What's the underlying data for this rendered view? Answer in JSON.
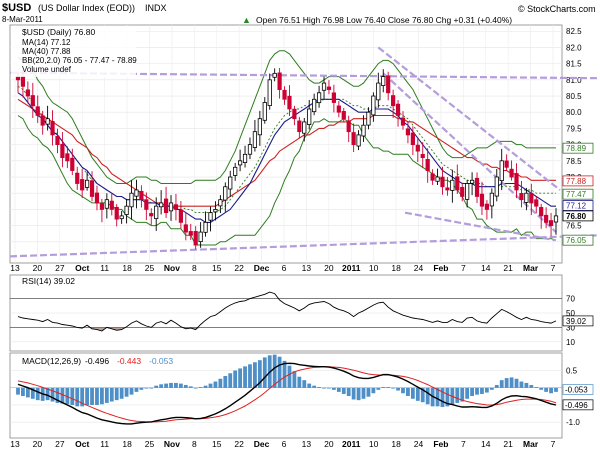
{
  "header": {
    "symbol": "$USD",
    "name": "(US Dollar Index (EOD))",
    "exchange": "INDX",
    "date": "8-Mar-2011",
    "quote": "Open 76.51  High 76.98  Low 76.40  Close 76.80  Chg +0.31 (+0.40%)",
    "quote_arrow": "▲",
    "watermark": "© StockCharts.com"
  },
  "legend": {
    "price": "$USD (Daily) 76.80",
    "ma14": "MA(14) 77.12",
    "ma40": "MA(40) 77.88",
    "bb": "BB(20,2.0) 76.05 - 77.47 - 78.89",
    "volume": "Volume undef",
    "rsi": "RSI(14) 39.02",
    "macd_label": "MACD(12,26,9)",
    "macd_val": "-0.496",
    "macd_signal": "-0.443",
    "macd_hist": "-0.053"
  },
  "colors": {
    "up": "#000000",
    "down": "#cc0033",
    "ma14": "#1a1a8c",
    "ma40": "#cc2222",
    "bb": "#2e7d1f",
    "bb_mid": "#2e7d1f",
    "trend": "#b39ddb",
    "macd": "#000000",
    "signal": "#dd2222",
    "hist": "#4f8fc8"
  },
  "chart_data": [
    {
      "type": "candlestick",
      "title": "$USD (Daily)",
      "ylim": [
        75.5,
        82.6
      ],
      "yticks": [
        "82.5",
        "82.0",
        "81.5",
        "81.0",
        "80.5",
        "80.0",
        "79.5",
        "79.0",
        "78.5",
        "78.0",
        "77.5",
        "77.0",
        "76.5",
        "76.0"
      ],
      "x_tick_labels": [
        "13",
        "20",
        "27",
        "Oct",
        "11",
        "18",
        "25",
        "Nov",
        "8",
        "15",
        "22",
        "Dec",
        "6",
        "13",
        "20",
        "2011",
        "10",
        "18",
        "24",
        "Feb",
        "7",
        "14",
        "21",
        "Mar",
        "7"
      ],
      "tags": [
        {
          "label": "78.89",
          "value": 78.89,
          "color": "#2e7d1f"
        },
        {
          "label": "77.88",
          "value": 77.88,
          "color": "#cc2222"
        },
        {
          "label": "77.47",
          "value": 77.47,
          "color": "#2e7d1f"
        },
        {
          "label": "77.12",
          "value": 77.12,
          "color": "#1a1a8c"
        },
        {
          "label": "76.80",
          "value": 76.8,
          "color": "#000000"
        },
        {
          "label": "76.05",
          "value": 76.05,
          "color": "#2e7d1f"
        }
      ],
      "closes": [
        81.0,
        80.8,
        80.5,
        80.2,
        79.9,
        79.6,
        79.8,
        79.3,
        79.0,
        78.6,
        78.5,
        78.2,
        77.8,
        77.6,
        77.9,
        77.4,
        77.2,
        77.0,
        77.3,
        77.0,
        76.7,
        76.8,
        77.1,
        77.5,
        77.6,
        77.3,
        77.0,
        76.8,
        77.1,
        77.2,
        76.9,
        77.2,
        77.0,
        76.6,
        76.3,
        76.2,
        75.9,
        76.3,
        76.6,
        76.9,
        77.0,
        77.3,
        77.7,
        78.0,
        78.3,
        78.5,
        78.7,
        79.0,
        79.4,
        79.8,
        80.3,
        81.0,
        81.2,
        80.7,
        80.4,
        80.1,
        79.8,
        79.4,
        79.7,
        80.1,
        80.4,
        80.6,
        80.9,
        80.7,
        80.3,
        80.0,
        79.8,
        79.4,
        79.0,
        79.3,
        79.6,
        80.0,
        80.5,
        80.9,
        81.1,
        80.6,
        80.2,
        79.9,
        79.6,
        79.3,
        79.0,
        78.8,
        78.6,
        78.2,
        77.9,
        78.0,
        77.7,
        77.6,
        77.9,
        77.6,
        77.4,
        77.8,
        77.9,
        77.4,
        77.1,
        77.0,
        77.5,
        78.0,
        78.5,
        78.3,
        78.0,
        77.6,
        77.3,
        77.5,
        77.2,
        77.1,
        76.8,
        76.6,
        76.5,
        76.8
      ],
      "ma14": [
        80.6,
        80.5,
        80.3,
        80.1,
        79.9,
        79.8,
        79.6,
        79.4,
        79.3,
        79.1,
        78.9,
        78.7,
        78.5,
        78.3,
        78.2,
        78.0,
        77.8,
        77.7,
        77.6,
        77.5,
        77.4,
        77.4,
        77.3,
        77.3,
        77.3,
        77.3,
        77.2,
        77.2,
        77.2,
        77.1,
        77.1,
        77.1,
        77.0,
        77.0,
        76.9,
        76.8,
        76.7,
        76.7,
        76.6,
        76.6,
        76.7,
        76.8,
        76.9,
        77.0,
        77.2,
        77.4,
        77.6,
        77.8,
        78.1,
        78.4,
        78.7,
        79.0,
        79.3,
        79.5,
        79.7,
        79.8,
        79.9,
        80.0,
        80.1,
        80.2,
        80.3,
        80.4,
        80.4,
        80.4,
        80.4,
        80.4,
        80.3,
        80.2,
        80.1,
        80.0,
        80.0,
        80.0,
        80.1,
        80.1,
        80.1,
        80.1,
        80.0,
        79.9,
        79.7,
        79.6,
        79.4,
        79.2,
        79.0,
        78.8,
        78.6,
        78.4,
        78.2,
        78.1,
        78.0,
        77.9,
        77.8,
        77.8,
        77.8,
        77.7,
        77.7,
        77.7,
        77.7,
        77.7,
        77.8,
        77.8,
        77.8,
        77.8,
        77.7,
        77.6,
        77.5,
        77.4,
        77.3,
        77.2,
        77.1,
        77.1
      ],
      "ma40": [
        80.4,
        80.3,
        80.2,
        80.1,
        80.0,
        79.9,
        79.8,
        79.7,
        79.6,
        79.5,
        79.4,
        79.3,
        79.1,
        79.0,
        78.9,
        78.7,
        78.6,
        78.4,
        78.3,
        78.1,
        78.0,
        77.9,
        77.8,
        77.7,
        77.6,
        77.5,
        77.4,
        77.3,
        77.2,
        77.2,
        77.1,
        77.1,
        77.1,
        77.1,
        77.1,
        77.1,
        77.1,
        77.1,
        77.1,
        77.1,
        77.1,
        77.2,
        77.3,
        77.4,
        77.5,
        77.6,
        77.7,
        77.8,
        77.9,
        78.1,
        78.3,
        78.5,
        78.6,
        78.8,
        78.9,
        79.0,
        79.1,
        79.2,
        79.3,
        79.3,
        79.4,
        79.5,
        79.5,
        79.6,
        79.6,
        79.7,
        79.7,
        79.7,
        79.8,
        79.8,
        79.8,
        79.8,
        79.9,
        79.9,
        79.9,
        79.9,
        79.9,
        79.8,
        79.8,
        79.7,
        79.7,
        79.6,
        79.5,
        79.4,
        79.3,
        79.2,
        79.1,
        79.0,
        78.9,
        78.8,
        78.7,
        78.6,
        78.6,
        78.5,
        78.4,
        78.4,
        78.3,
        78.3,
        78.2,
        78.2,
        78.1,
        78.1,
        78.0,
        78.0,
        77.9,
        77.9,
        77.9,
        77.9,
        77.9,
        77.9
      ],
      "bb_upper": [
        81.7,
        81.6,
        81.5,
        81.3,
        81.0,
        80.8,
        80.5,
        80.3,
        80.2,
        80.1,
        80.0,
        79.8,
        79.5,
        79.2,
        78.9,
        78.6,
        78.4,
        78.2,
        78.0,
        77.9,
        77.8,
        77.8,
        77.8,
        77.9,
        78.0,
        78.0,
        78.0,
        77.9,
        77.9,
        77.8,
        77.8,
        77.8,
        77.8,
        77.8,
        77.8,
        77.8,
        77.9,
        77.9,
        77.9,
        77.9,
        77.9,
        78.0,
        78.2,
        78.5,
        78.8,
        79.2,
        79.6,
        80.0,
        80.4,
        80.8,
        81.2,
        81.6,
        81.8,
        81.9,
        81.9,
        81.8,
        81.6,
        81.4,
        81.2,
        81.0,
        80.9,
        80.9,
        81.0,
        81.1,
        81.1,
        81.1,
        81.0,
        80.9,
        80.8,
        80.8,
        80.9,
        81.1,
        81.3,
        81.5,
        81.6,
        81.6,
        81.5,
        81.3,
        81.1,
        80.9,
        80.7,
        80.4,
        80.1,
        79.8,
        79.5,
        79.2,
        78.9,
        78.7,
        78.6,
        78.6,
        78.6,
        78.7,
        78.8,
        78.9,
        78.9,
        78.9,
        79.0,
        79.1,
        79.1,
        79.1,
        79.1,
        79.0,
        79.0,
        78.9,
        78.9,
        78.9,
        78.9,
        78.9,
        78.9,
        78.9
      ],
      "bb_mid": [
        80.8,
        80.7,
        80.5,
        80.3,
        80.1,
        79.9,
        79.7,
        79.5,
        79.3,
        79.1,
        78.9,
        78.7,
        78.5,
        78.3,
        78.1,
        77.9,
        77.8,
        77.7,
        77.6,
        77.5,
        77.4,
        77.4,
        77.3,
        77.3,
        77.3,
        77.3,
        77.3,
        77.2,
        77.2,
        77.2,
        77.2,
        77.1,
        77.1,
        77.1,
        77.0,
        77.0,
        76.9,
        76.9,
        76.9,
        76.9,
        76.9,
        77.0,
        77.1,
        77.3,
        77.5,
        77.7,
        77.9,
        78.1,
        78.3,
        78.6,
        78.9,
        79.2,
        79.5,
        79.7,
        79.9,
        80.0,
        80.1,
        80.1,
        80.2,
        80.2,
        80.3,
        80.3,
        80.4,
        80.4,
        80.4,
        80.4,
        80.4,
        80.3,
        80.2,
        80.2,
        80.1,
        80.1,
        80.1,
        80.2,
        80.2,
        80.2,
        80.1,
        80.0,
        79.9,
        79.8,
        79.6,
        79.4,
        79.2,
        79.0,
        78.8,
        78.6,
        78.4,
        78.3,
        78.2,
        78.1,
        78.0,
        77.9,
        77.9,
        77.8,
        77.8,
        77.7,
        77.7,
        77.7,
        77.7,
        77.7,
        77.7,
        77.7,
        77.6,
        77.6,
        77.6,
        77.5,
        77.5,
        77.5,
        77.5,
        77.5
      ],
      "bb_lower": [
        79.9,
        79.8,
        79.5,
        79.3,
        79.2,
        79.0,
        78.9,
        78.7,
        78.4,
        78.1,
        77.8,
        77.6,
        77.5,
        77.4,
        77.3,
        77.2,
        77.2,
        77.2,
        77.2,
        77.1,
        77.0,
        77.0,
        76.8,
        76.7,
        76.6,
        76.6,
        76.6,
        76.5,
        76.5,
        76.6,
        76.6,
        76.4,
        76.4,
        76.4,
        76.2,
        76.2,
        75.9,
        75.9,
        75.9,
        75.9,
        75.9,
        76.0,
        76.0,
        76.1,
        76.2,
        76.2,
        76.2,
        76.2,
        76.2,
        76.4,
        76.6,
        76.8,
        77.2,
        77.5,
        77.9,
        78.2,
        78.6,
        78.8,
        79.2,
        79.4,
        79.7,
        79.7,
        79.8,
        79.7,
        79.7,
        79.7,
        79.8,
        79.7,
        79.6,
        79.6,
        79.3,
        79.1,
        78.9,
        78.9,
        78.8,
        78.8,
        78.7,
        78.7,
        78.7,
        78.7,
        78.5,
        78.4,
        78.3,
        78.2,
        78.1,
        78.0,
        77.9,
        77.9,
        77.8,
        77.6,
        77.4,
        77.1,
        77.0,
        76.7,
        76.7,
        76.5,
        76.4,
        76.3,
        76.3,
        76.3,
        76.3,
        76.4,
        76.2,
        76.3,
        76.3,
        76.1,
        76.1,
        76.1,
        76.1,
        76.05
      ]
    },
    {
      "type": "line",
      "title": "RSI(14)",
      "ylim": [
        0,
        100
      ],
      "yticks": [
        "70",
        "50",
        "30",
        "10"
      ],
      "levels": [
        70,
        30
      ],
      "tag": {
        "label": "39.02",
        "value": 39.02
      },
      "values": [
        45,
        43,
        42,
        41,
        40,
        38,
        41,
        37,
        36,
        34,
        33,
        32,
        30,
        29,
        33,
        28,
        27,
        25,
        30,
        28,
        26,
        27,
        31,
        36,
        39,
        35,
        32,
        30,
        36,
        38,
        35,
        40,
        36,
        31,
        28,
        29,
        27,
        34,
        40,
        45,
        47,
        52,
        57,
        61,
        64,
        66,
        67,
        70,
        72,
        74,
        76,
        79,
        77,
        68,
        63,
        60,
        57,
        53,
        57,
        62,
        64,
        65,
        66,
        63,
        58,
        55,
        53,
        50,
        45,
        50,
        53,
        57,
        61,
        64,
        65,
        58,
        53,
        50,
        47,
        45,
        43,
        42,
        41,
        39,
        37,
        39,
        37,
        37,
        41,
        38,
        37,
        43,
        44,
        39,
        37,
        36,
        43,
        49,
        55,
        52,
        48,
        44,
        41,
        44,
        41,
        40,
        38,
        37,
        36,
        39
      ]
    },
    {
      "type": "line",
      "title": "MACD(12,26,9)",
      "ylim": [
        -1.4,
        0.95
      ],
      "yticks": [
        "0.5",
        "0.0",
        "-0.5",
        "-1.0"
      ],
      "tags": [
        {
          "label": "-0.053",
          "value": -0.053
        },
        {
          "label": "-0.496",
          "value": -0.496
        }
      ],
      "series": [
        {
          "name": "MACD",
          "values": [
            0.1,
            0.05,
            0.0,
            -0.06,
            -0.12,
            -0.18,
            -0.22,
            -0.29,
            -0.36,
            -0.43,
            -0.5,
            -0.57,
            -0.65,
            -0.72,
            -0.76,
            -0.82,
            -0.88,
            -0.93,
            -0.96,
            -0.99,
            -1.02,
            -1.04,
            -1.05,
            -1.05,
            -1.03,
            -1.01,
            -1.0,
            -0.99,
            -0.96,
            -0.93,
            -0.91,
            -0.88,
            -0.86,
            -0.86,
            -0.87,
            -0.88,
            -0.9,
            -0.89,
            -0.86,
            -0.81,
            -0.76,
            -0.69,
            -0.61,
            -0.52,
            -0.42,
            -0.32,
            -0.22,
            -0.1,
            0.02,
            0.15,
            0.3,
            0.45,
            0.58,
            0.66,
            0.7,
            0.71,
            0.7,
            0.67,
            0.65,
            0.63,
            0.62,
            0.61,
            0.61,
            0.6,
            0.57,
            0.53,
            0.48,
            0.42,
            0.34,
            0.29,
            0.27,
            0.27,
            0.3,
            0.34,
            0.38,
            0.38,
            0.35,
            0.31,
            0.25,
            0.18,
            0.1,
            0.02,
            -0.06,
            -0.15,
            -0.25,
            -0.32,
            -0.4,
            -0.46,
            -0.49,
            -0.53,
            -0.56,
            -0.56,
            -0.55,
            -0.56,
            -0.57,
            -0.57,
            -0.53,
            -0.45,
            -0.35,
            -0.28,
            -0.24,
            -0.23,
            -0.25,
            -0.26,
            -0.29,
            -0.32,
            -0.37,
            -0.42,
            -0.47,
            -0.5
          ]
        },
        {
          "name": "Signal",
          "values": [
            0.2,
            0.17,
            0.14,
            0.1,
            0.06,
            0.01,
            -0.04,
            -0.09,
            -0.14,
            -0.2,
            -0.26,
            -0.32,
            -0.38,
            -0.45,
            -0.51,
            -0.57,
            -0.63,
            -0.69,
            -0.74,
            -0.79,
            -0.84,
            -0.88,
            -0.92,
            -0.95,
            -0.97,
            -0.98,
            -0.99,
            -0.99,
            -0.99,
            -0.98,
            -0.97,
            -0.95,
            -0.93,
            -0.92,
            -0.91,
            -0.9,
            -0.9,
            -0.9,
            -0.89,
            -0.87,
            -0.85,
            -0.82,
            -0.78,
            -0.73,
            -0.67,
            -0.6,
            -0.53,
            -0.44,
            -0.35,
            -0.25,
            -0.14,
            -0.02,
            0.1,
            0.21,
            0.31,
            0.39,
            0.46,
            0.51,
            0.54,
            0.57,
            0.59,
            0.6,
            0.61,
            0.61,
            0.6,
            0.59,
            0.57,
            0.54,
            0.51,
            0.47,
            0.43,
            0.4,
            0.38,
            0.37,
            0.37,
            0.37,
            0.36,
            0.35,
            0.33,
            0.3,
            0.26,
            0.21,
            0.15,
            0.09,
            0.02,
            -0.05,
            -0.12,
            -0.19,
            -0.25,
            -0.31,
            -0.36,
            -0.4,
            -0.43,
            -0.46,
            -0.48,
            -0.5,
            -0.5,
            -0.49,
            -0.46,
            -0.42,
            -0.39,
            -0.36,
            -0.34,
            -0.33,
            -0.33,
            -0.33,
            -0.34,
            -0.36,
            -0.39,
            -0.44
          ]
        }
      ]
    }
  ]
}
